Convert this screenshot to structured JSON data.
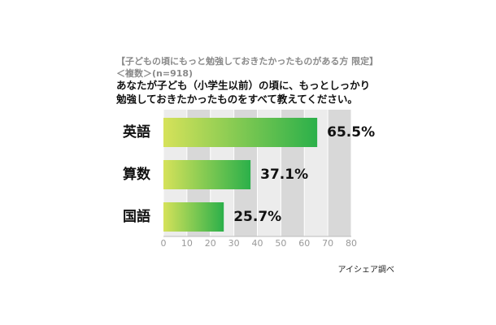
{
  "chart_data": {
    "type": "hbar",
    "title": "【子どもの頃にもっと勉強しておきたかったものがある方 限定】",
    "subtitle": "＜複数＞(n=918)",
    "question": [
      "あなたが子ども（小学生以前）の頃に、もっとしっかり",
      "勉強しておきたかったものをすべて教えてください。"
    ],
    "categories": [
      "英語",
      "算数",
      "国語"
    ],
    "values": [
      65.5,
      37.1,
      25.7
    ],
    "value_labels": [
      "65.5%",
      "37.1%",
      "25.7%"
    ],
    "color": [
      "#d6e25a",
      "#2bb04a"
    ],
    "xlim": [
      0,
      80
    ],
    "xticks": [
      0,
      10,
      20,
      30,
      40,
      50,
      60,
      70,
      80
    ],
    "source": "アイシェア調べ"
  }
}
